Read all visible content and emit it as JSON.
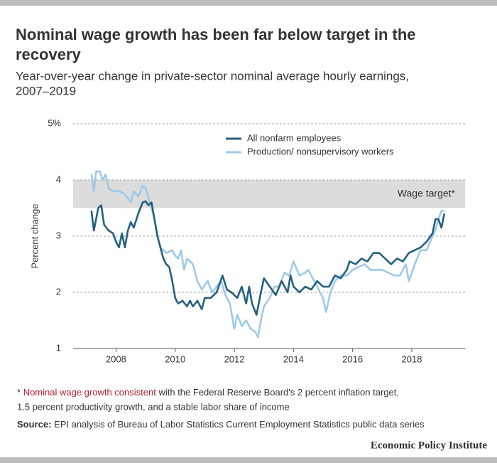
{
  "chart_data": {
    "type": "line",
    "title_line1": "Nominal wage growth has been far below target in the",
    "title_line2": "recovery",
    "subtitle_line1": "Year-over-year change in private-sector nominal average hourly earnings,",
    "subtitle_line2": "2007–2019",
    "y_label": "Percent change",
    "xlim": [
      2006.55,
      2019.8
    ],
    "xticks": [
      2008,
      2010,
      2012,
      2014,
      2016,
      2018
    ],
    "ylim": [
      1,
      5
    ],
    "yticks": [
      {
        "value": 5,
        "label": "5%"
      },
      4,
      3,
      2,
      1
    ],
    "grid": true,
    "target_band": [
      3.5,
      4
    ],
    "target_label": "Wage target*",
    "series": [
      {
        "name": "All nonfarm employees",
        "color": "#24607f",
        "x": [
          2007.17,
          2007.25,
          2007.4,
          2007.5,
          2007.6,
          2007.75,
          2007.9,
          2008.0,
          2008.1,
          2008.2,
          2008.3,
          2008.4,
          2008.5,
          2008.6,
          2008.75,
          2008.9,
          2009.0,
          2009.1,
          2009.2,
          2009.3,
          2009.4,
          2009.5,
          2009.6,
          2009.7,
          2009.8,
          2009.9,
          2010.0,
          2010.1,
          2010.25,
          2010.4,
          2010.5,
          2010.6,
          2010.75,
          2010.9,
          2011.0,
          2011.2,
          2011.4,
          2011.6,
          2011.75,
          2011.9,
          2012.1,
          2012.25,
          2012.4,
          2012.5,
          2012.6,
          2012.75,
          2012.9,
          2013.0,
          2013.2,
          2013.4,
          2013.6,
          2013.8,
          2013.9,
          2014.0,
          2014.2,
          2014.4,
          2014.6,
          2014.8,
          2015.0,
          2015.2,
          2015.4,
          2015.6,
          2015.8,
          2015.9,
          2016.1,
          2016.3,
          2016.5,
          2016.7,
          2016.9,
          2017.1,
          2017.3,
          2017.5,
          2017.7,
          2017.9,
          2018.1,
          2018.3,
          2018.5,
          2018.7,
          2018.8,
          2018.9,
          2019.0,
          2019.1
        ],
        "values": [
          3.45,
          3.1,
          3.5,
          3.55,
          3.2,
          3.1,
          3.05,
          2.9,
          2.8,
          3.05,
          2.8,
          3.1,
          3.25,
          3.15,
          3.4,
          3.6,
          3.62,
          3.55,
          3.6,
          3.3,
          3.0,
          2.8,
          2.6,
          2.5,
          2.45,
          2.2,
          1.9,
          1.8,
          1.85,
          1.75,
          1.85,
          1.75,
          1.85,
          1.7,
          1.9,
          1.9,
          2.0,
          2.3,
          2.05,
          2.0,
          1.9,
          2.1,
          1.8,
          2.1,
          1.8,
          1.6,
          2.0,
          2.25,
          2.1,
          1.95,
          2.2,
          2.0,
          2.3,
          2.1,
          2.0,
          2.1,
          2.05,
          2.2,
          2.1,
          2.1,
          2.3,
          2.25,
          2.4,
          2.55,
          2.5,
          2.6,
          2.55,
          2.7,
          2.7,
          2.6,
          2.5,
          2.6,
          2.55,
          2.7,
          2.75,
          2.8,
          2.9,
          3.05,
          3.3,
          3.3,
          3.15,
          3.4
        ]
      },
      {
        "name": "Production/ nonsupervisory workers",
        "color": "#9fc9e8",
        "x": [
          2007.17,
          2007.25,
          2007.33,
          2007.45,
          2007.55,
          2007.65,
          2007.75,
          2007.9,
          2008.1,
          2008.3,
          2008.5,
          2008.6,
          2008.75,
          2008.9,
          2009.0,
          2009.2,
          2009.3,
          2009.4,
          2009.5,
          2009.7,
          2009.9,
          2010.0,
          2010.1,
          2010.2,
          2010.3,
          2010.4,
          2010.6,
          2010.75,
          2010.9,
          2011.1,
          2011.25,
          2011.4,
          2011.55,
          2011.7,
          2011.85,
          2012.0,
          2012.1,
          2012.25,
          2012.4,
          2012.55,
          2012.7,
          2012.8,
          2012.9,
          2013.0,
          2013.2,
          2013.35,
          2013.5,
          2013.7,
          2013.85,
          2014.0,
          2014.2,
          2014.4,
          2014.5,
          2014.6,
          2014.8,
          2015.0,
          2015.1,
          2015.25,
          2015.4,
          2015.6,
          2015.8,
          2016.0,
          2016.2,
          2016.4,
          2016.6,
          2016.8,
          2017.0,
          2017.2,
          2017.4,
          2017.6,
          2017.8,
          2017.9,
          2018.1,
          2018.3,
          2018.5,
          2018.7,
          2018.8,
          2018.9,
          2019.0,
          2019.1
        ],
        "values": [
          4.1,
          3.8,
          4.15,
          4.15,
          4.0,
          4.1,
          3.85,
          3.8,
          3.8,
          3.75,
          3.6,
          3.8,
          3.7,
          3.9,
          3.85,
          3.5,
          3.3,
          3.0,
          2.8,
          2.7,
          2.75,
          2.65,
          2.6,
          2.75,
          2.4,
          2.6,
          2.5,
          2.2,
          2.05,
          2.2,
          2.0,
          2.1,
          2.2,
          1.95,
          1.8,
          1.35,
          1.6,
          1.4,
          1.5,
          1.35,
          1.3,
          1.2,
          1.5,
          1.75,
          1.9,
          2.1,
          2.1,
          2.35,
          2.3,
          2.55,
          2.3,
          2.35,
          2.4,
          2.3,
          2.1,
          1.9,
          1.65,
          2.0,
          2.2,
          2.3,
          2.3,
          2.4,
          2.45,
          2.5,
          2.4,
          2.4,
          2.4,
          2.35,
          2.3,
          2.3,
          2.5,
          2.2,
          2.5,
          2.75,
          2.75,
          3.0,
          3.1,
          3.3,
          3.45,
          3.45
        ]
      }
    ],
    "note_marker": "*",
    "note_highlight": "Nominal wage growth consistent",
    "note_rest": "with the Federal Reserve Board's 2 percent inflation target,",
    "note_line2": "1.5 percent productivity growth, and a stable labor share of income",
    "source_label": "Source:",
    "source_text": "EPI analysis of Bureau of Labor Statistics Current Employment Statistics public data series",
    "brand": "Economic Policy Institute"
  }
}
